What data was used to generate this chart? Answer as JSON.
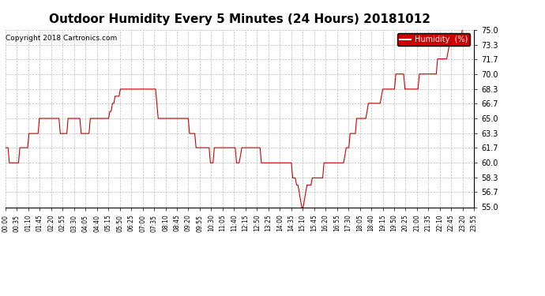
{
  "title": "Outdoor Humidity Every 5 Minutes (24 Hours) 20181012",
  "copyright": "Copyright 2018 Cartronics.com",
  "legend_label": "Humidity  (%)",
  "legend_bg": "#cc0000",
  "legend_text_color": "#ffffff",
  "line_color": "#cc0000",
  "bg_color": "#ffffff",
  "grid_color": "#aaaaaa",
  "ylim": [
    55.0,
    75.0
  ],
  "yticks": [
    55.0,
    56.7,
    58.3,
    60.0,
    61.7,
    63.3,
    65.0,
    66.7,
    68.3,
    70.0,
    71.7,
    73.3,
    75.0
  ],
  "title_fontsize": 11,
  "copyright_fontsize": 6.5,
  "humidity_values": [
    61.7,
    61.7,
    61.7,
    60.0,
    60.0,
    60.0,
    60.0,
    60.0,
    60.0,
    60.0,
    60.0,
    61.7,
    61.7,
    61.7,
    61.7,
    61.7,
    61.7,
    61.7,
    63.3,
    63.3,
    63.3,
    63.3,
    63.3,
    63.3,
    63.3,
    63.3,
    65.0,
    65.0,
    65.0,
    65.0,
    65.0,
    65.0,
    65.0,
    65.0,
    65.0,
    65.0,
    65.0,
    65.0,
    65.0,
    65.0,
    65.0,
    65.0,
    63.3,
    63.3,
    63.3,
    63.3,
    63.3,
    63.3,
    65.0,
    65.0,
    65.0,
    65.0,
    65.0,
    65.0,
    65.0,
    65.0,
    65.0,
    65.0,
    63.3,
    63.3,
    63.3,
    63.3,
    63.3,
    63.3,
    63.3,
    65.0,
    65.0,
    65.0,
    65.0,
    65.0,
    65.0,
    65.0,
    65.0,
    65.0,
    65.0,
    65.0,
    65.0,
    65.0,
    65.0,
    65.0,
    65.8,
    65.8,
    66.7,
    66.7,
    67.5,
    67.5,
    67.5,
    67.5,
    68.3,
    68.3,
    68.3,
    68.3,
    68.3,
    68.3,
    68.3,
    68.3,
    68.3,
    68.3,
    68.3,
    68.3,
    68.3,
    68.3,
    68.3,
    68.3,
    68.3,
    68.3,
    68.3,
    68.3,
    68.3,
    68.3,
    68.3,
    68.3,
    68.3,
    68.3,
    68.3,
    68.3,
    66.7,
    65.0,
    65.0,
    65.0,
    65.0,
    65.0,
    65.0,
    65.0,
    65.0,
    65.0,
    65.0,
    65.0,
    65.0,
    65.0,
    65.0,
    65.0,
    65.0,
    65.0,
    65.0,
    65.0,
    65.0,
    65.0,
    65.0,
    65.0,
    65.0,
    63.3,
    63.3,
    63.3,
    63.3,
    63.3,
    61.7,
    61.7,
    61.7,
    61.7,
    61.7,
    61.7,
    61.7,
    61.7,
    61.7,
    61.7,
    61.7,
    60.0,
    60.0,
    60.0,
    61.7,
    61.7,
    61.7,
    61.7,
    61.7,
    61.7,
    61.7,
    61.7,
    61.7,
    61.7,
    61.7,
    61.7,
    61.7,
    61.7,
    61.7,
    61.7,
    61.7,
    60.0,
    60.0,
    60.0,
    60.8,
    61.7,
    61.7,
    61.7,
    61.7,
    61.7,
    61.7,
    61.7,
    61.7,
    61.7,
    61.7,
    61.7,
    61.7,
    61.7,
    61.7,
    61.7,
    60.0,
    60.0,
    60.0,
    60.0,
    60.0,
    60.0,
    60.0,
    60.0,
    60.0,
    60.0,
    60.0,
    60.0,
    60.0,
    60.0,
    60.0,
    60.0,
    60.0,
    60.0,
    60.0,
    60.0,
    60.0,
    60.0,
    60.0,
    60.0,
    58.3,
    58.3,
    58.3,
    57.5,
    57.5,
    56.7,
    55.8,
    55.0,
    55.0,
    55.8,
    56.7,
    57.5,
    57.5,
    57.5,
    57.5,
    58.3,
    58.3,
    58.3,
    58.3,
    58.3,
    58.3,
    58.3,
    58.3,
    58.3,
    60.0,
    60.0,
    60.0,
    60.0,
    60.0,
    60.0,
    60.0,
    60.0,
    60.0,
    60.0,
    60.0,
    60.0,
    60.0,
    60.0,
    60.0,
    60.0,
    60.8,
    61.7,
    61.7,
    61.7,
    63.3,
    63.3,
    63.3,
    63.3,
    63.3,
    65.0,
    65.0,
    65.0,
    65.0,
    65.0,
    65.0,
    65.0,
    65.0,
    65.8,
    66.7,
    66.7,
    66.7,
    66.7,
    66.7,
    66.7,
    66.7,
    66.7,
    66.7,
    66.7,
    67.5,
    68.3,
    68.3,
    68.3,
    68.3,
    68.3,
    68.3,
    68.3,
    68.3,
    68.3,
    68.3,
    70.0,
    70.0,
    70.0,
    70.0,
    70.0,
    70.0,
    70.0,
    68.3,
    68.3,
    68.3,
    68.3,
    68.3,
    68.3,
    68.3,
    68.3,
    68.3,
    68.3,
    68.3,
    70.0,
    70.0,
    70.0,
    70.0,
    70.0,
    70.0,
    70.0,
    70.0,
    70.0,
    70.0,
    70.0,
    70.0,
    70.0,
    70.0,
    71.7,
    71.7,
    71.7,
    71.7,
    71.7,
    71.7,
    71.7,
    71.7,
    72.5,
    73.3,
    73.3,
    73.3,
    73.3,
    73.3,
    73.3,
    73.3,
    73.3,
    73.3,
    74.2,
    75.0,
    75.0,
    75.0,
    75.0,
    75.0,
    75.0,
    75.0,
    75.0,
    75.0,
    75.0
  ],
  "xtick_labels": [
    "00:00",
    "00:35",
    "01:10",
    "01:45",
    "02:20",
    "02:55",
    "03:30",
    "04:05",
    "04:40",
    "05:15",
    "05:50",
    "06:25",
    "07:00",
    "07:35",
    "08:10",
    "08:45",
    "09:20",
    "09:55",
    "10:30",
    "11:05",
    "11:40",
    "12:15",
    "12:50",
    "13:25",
    "14:00",
    "14:35",
    "15:10",
    "15:45",
    "16:20",
    "16:55",
    "17:30",
    "18:05",
    "18:40",
    "19:15",
    "19:50",
    "20:25",
    "21:00",
    "21:35",
    "22:10",
    "22:45",
    "23:20",
    "23:55"
  ]
}
